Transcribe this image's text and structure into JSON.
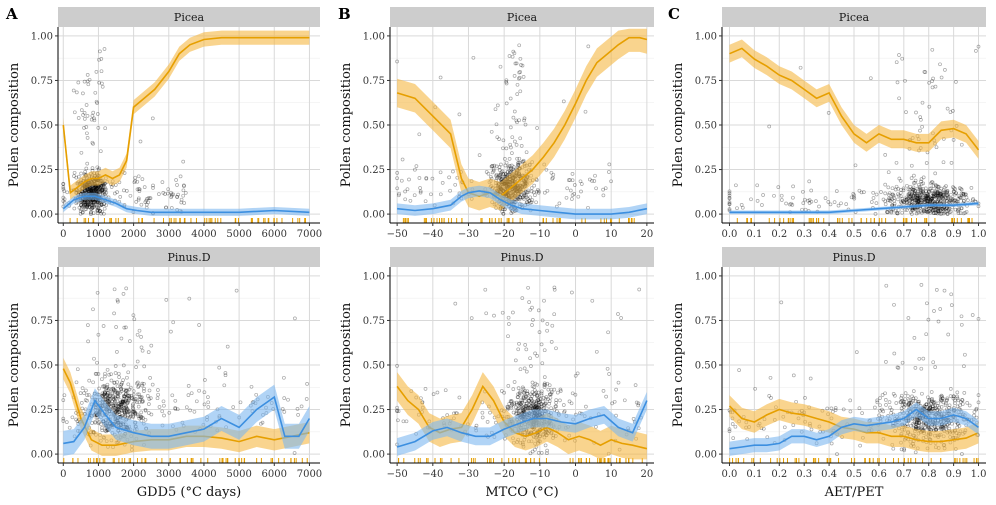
{
  "figure": {
    "y_label": "Pollen composition",
    "colors": {
      "orange_line": "#E69F00",
      "orange_band": "#F5B842",
      "blue_line": "#3C8FE0",
      "blue_band": "#7DB8F0",
      "points": "#000000",
      "strip_bg": "#CDCDCD",
      "grid": "#D9D9D9"
    }
  },
  "chart_data": [
    {
      "type": "scatter",
      "panel_letter": "A",
      "strip": "Picea",
      "xlabel": "",
      "xlim": [
        -150,
        7300
      ],
      "ylim": [
        -0.05,
        1.05
      ],
      "xticks": [
        0,
        1000,
        2000,
        3000,
        4000,
        5000,
        6000,
        7000
      ],
      "xtick_labels": [
        "0",
        "1000",
        "2000",
        "3000",
        "4000",
        "5000",
        "6000",
        "7000"
      ],
      "yticks": [
        0,
        0.25,
        0.5,
        0.75,
        1
      ],
      "ytick_labels": [
        "0.00",
        "0.25",
        "0.50",
        "0.75",
        "1.00"
      ],
      "points_summary": {
        "x_center": 800,
        "x_spread": 700,
        "y_mean": 0.12,
        "y_spread": 0.2,
        "x_tail_max": 3500
      },
      "series": [
        {
          "color": "orange",
          "x": [
            0,
            200,
            400,
            600,
            800,
            1000,
            1200,
            1400,
            1600,
            1800,
            2000,
            2300,
            2600,
            3000,
            3300,
            3600,
            4000,
            4500,
            5000,
            5500,
            6000,
            6500,
            7000
          ],
          "y": [
            0.5,
            0.12,
            0.15,
            0.18,
            0.2,
            0.2,
            0.22,
            0.2,
            0.22,
            0.3,
            0.6,
            0.65,
            0.7,
            0.8,
            0.9,
            0.95,
            0.98,
            0.99,
            0.99,
            0.99,
            0.99,
            0.99,
            0.99
          ],
          "band": 0.04
        },
        {
          "color": "blue",
          "x": [
            0,
            300,
            600,
            900,
            1200,
            1500,
            1800,
            2100,
            2500,
            3000,
            4000,
            5000,
            6000,
            7000
          ],
          "y": [
            0.03,
            0.08,
            0.1,
            0.1,
            0.08,
            0.06,
            0.03,
            0.02,
            0.01,
            0.01,
            0.01,
            0.01,
            0.02,
            0.01
          ],
          "band": 0.02
        }
      ]
    },
    {
      "type": "scatter",
      "panel_letter": "B",
      "strip": "Picea",
      "xlabel": "",
      "xlim": [
        -52,
        22
      ],
      "ylim": [
        -0.05,
        1.05
      ],
      "xticks": [
        -50,
        -40,
        -30,
        -20,
        -10,
        0,
        10,
        20
      ],
      "xtick_labels": [
        "−50",
        "−40",
        "−30",
        "−20",
        "−10",
        "0",
        "10",
        "20"
      ],
      "yticks": [
        0,
        0.25,
        0.5,
        0.75,
        1
      ],
      "ytick_labels": [
        "0.00",
        "0.25",
        "0.50",
        "0.75",
        "1.00"
      ],
      "points_summary": {
        "x_center": -18,
        "x_spread": 10,
        "y_mean": 0.15,
        "y_spread": 0.22,
        "x_tail_max": 10
      },
      "series": [
        {
          "color": "orange",
          "x": [
            -50,
            -45,
            -40,
            -35,
            -32,
            -30,
            -27,
            -24,
            -21,
            -18,
            -15,
            -12,
            -9,
            -6,
            -3,
            0,
            3,
            6,
            9,
            12,
            15,
            18,
            20
          ],
          "y": [
            0.68,
            0.65,
            0.55,
            0.45,
            0.2,
            0.12,
            0.1,
            0.12,
            0.1,
            0.15,
            0.2,
            0.25,
            0.32,
            0.4,
            0.5,
            0.62,
            0.75,
            0.85,
            0.9,
            0.95,
            0.99,
            0.99,
            0.98
          ],
          "band": 0.08
        },
        {
          "color": "blue",
          "x": [
            -50,
            -45,
            -40,
            -35,
            -32,
            -30,
            -27,
            -24,
            -21,
            -18,
            -15,
            -10,
            -5,
            0,
            5,
            10,
            15,
            20
          ],
          "y": [
            0.03,
            0.02,
            0.03,
            0.05,
            0.1,
            0.12,
            0.13,
            0.12,
            0.08,
            0.05,
            0.03,
            0.02,
            0.01,
            0.0,
            0.0,
            0.0,
            0.01,
            0.03
          ],
          "band": 0.03
        }
      ]
    },
    {
      "type": "scatter",
      "panel_letter": "C",
      "strip": "Picea",
      "xlabel": "",
      "xlim": [
        -0.03,
        1.03
      ],
      "ylim": [
        -0.05,
        1.05
      ],
      "xticks": [
        0,
        0.1,
        0.2,
        0.3,
        0.4,
        0.5,
        0.6,
        0.7,
        0.8,
        0.9,
        1
      ],
      "xtick_labels": [
        "0.0",
        "0.1",
        "0.2",
        "0.3",
        "0.4",
        "0.5",
        "0.6",
        "0.7",
        "0.8",
        "0.9",
        "1.0"
      ],
      "yticks": [
        0,
        0.25,
        0.5,
        0.75,
        1
      ],
      "ytick_labels": [
        "0.00",
        "0.25",
        "0.50",
        "0.75",
        "1.00"
      ],
      "points_summary": {
        "x_center": 0.8,
        "x_spread": 0.25,
        "y_mean": 0.08,
        "y_spread": 0.15,
        "x_tail_max": 1
      },
      "series": [
        {
          "color": "orange",
          "x": [
            0,
            0.05,
            0.1,
            0.15,
            0.2,
            0.25,
            0.3,
            0.35,
            0.4,
            0.45,
            0.5,
            0.55,
            0.6,
            0.65,
            0.7,
            0.75,
            0.8,
            0.85,
            0.9,
            0.95,
            1
          ],
          "y": [
            0.9,
            0.93,
            0.87,
            0.83,
            0.78,
            0.75,
            0.7,
            0.65,
            0.68,
            0.55,
            0.45,
            0.4,
            0.45,
            0.42,
            0.42,
            0.4,
            0.4,
            0.47,
            0.48,
            0.45,
            0.36
          ],
          "band": 0.05
        },
        {
          "color": "blue",
          "x": [
            0,
            0.1,
            0.2,
            0.3,
            0.4,
            0.5,
            0.6,
            0.7,
            0.8,
            0.9,
            1
          ],
          "y": [
            0.01,
            0.01,
            0.01,
            0.01,
            0.01,
            0.02,
            0.03,
            0.04,
            0.05,
            0.05,
            0.06
          ],
          "band": 0.01
        }
      ]
    },
    {
      "type": "scatter",
      "panel_letter": "",
      "strip": "Pinus.D",
      "xlabel": "GDD5 (°C days)",
      "xlim": [
        -150,
        7300
      ],
      "ylim": [
        -0.05,
        1.05
      ],
      "xticks": [
        0,
        1000,
        2000,
        3000,
        4000,
        5000,
        6000,
        7000
      ],
      "xtick_labels": [
        "0",
        "1000",
        "2000",
        "3000",
        "4000",
        "5000",
        "6000",
        "7000"
      ],
      "yticks": [
        0,
        0.25,
        0.5,
        0.75,
        1
      ],
      "ytick_labels": [
        "0.00",
        "0.25",
        "0.50",
        "0.75",
        "1.00"
      ],
      "points_summary": {
        "x_center": 1500,
        "x_spread": 1500,
        "y_mean": 0.25,
        "y_spread": 0.3,
        "x_tail_max": 7000
      },
      "series": [
        {
          "color": "orange",
          "x": [
            0,
            200,
            500,
            800,
            1100,
            1500,
            2000,
            2500,
            3000,
            3500,
            4000,
            4500,
            5000,
            5500,
            6000,
            6500,
            7000
          ],
          "y": [
            0.48,
            0.4,
            0.2,
            0.08,
            0.05,
            0.05,
            0.07,
            0.08,
            0.08,
            0.1,
            0.1,
            0.09,
            0.07,
            0.1,
            0.08,
            0.1,
            0.12
          ],
          "band": 0.06
        },
        {
          "color": "blue",
          "x": [
            0,
            300,
            600,
            900,
            1200,
            1500,
            2000,
            2500,
            3000,
            3500,
            4000,
            4500,
            5000,
            5500,
            6000,
            6300,
            6700,
            7000
          ],
          "y": [
            0.06,
            0.07,
            0.15,
            0.3,
            0.22,
            0.15,
            0.12,
            0.1,
            0.1,
            0.12,
            0.14,
            0.2,
            0.15,
            0.25,
            0.32,
            0.1,
            0.1,
            0.2
          ],
          "band": 0.07
        }
      ]
    },
    {
      "type": "scatter",
      "panel_letter": "",
      "strip": "Pinus.D",
      "xlabel": "MTCO (°C)",
      "xlim": [
        -52,
        22
      ],
      "ylim": [
        -0.05,
        1.05
      ],
      "xticks": [
        -50,
        -40,
        -30,
        -20,
        -10,
        0,
        10,
        20
      ],
      "xtick_labels": [
        "−50",
        "−40",
        "−30",
        "−20",
        "−10",
        "0",
        "10",
        "20"
      ],
      "yticks": [
        0,
        0.25,
        0.5,
        0.75,
        1
      ],
      "ytick_labels": [
        "0.00",
        "0.25",
        "0.50",
        "0.75",
        "1.00"
      ],
      "points_summary": {
        "x_center": -12,
        "x_spread": 12,
        "y_mean": 0.22,
        "y_spread": 0.28,
        "x_tail_max": 20
      },
      "series": [
        {
          "color": "orange",
          "x": [
            -50,
            -47,
            -44,
            -41,
            -38,
            -35,
            -32,
            -29,
            -26,
            -23,
            -20,
            -17,
            -14,
            -11,
            -8,
            -5,
            -2,
            1,
            4,
            7,
            10,
            13,
            16,
            20
          ],
          "y": [
            0.38,
            0.3,
            0.25,
            0.15,
            0.12,
            0.14,
            0.15,
            0.25,
            0.38,
            0.3,
            0.18,
            0.12,
            0.1,
            0.12,
            0.15,
            0.12,
            0.08,
            0.1,
            0.08,
            0.05,
            0.08,
            0.06,
            0.05,
            0.03
          ],
          "band": 0.08
        },
        {
          "color": "blue",
          "x": [
            -50,
            -45,
            -40,
            -36,
            -32,
            -28,
            -24,
            -20,
            -16,
            -12,
            -8,
            -4,
            0,
            4,
            8,
            12,
            16,
            20
          ],
          "y": [
            0.04,
            0.07,
            0.13,
            0.15,
            0.12,
            0.1,
            0.1,
            0.14,
            0.17,
            0.2,
            0.2,
            0.18,
            0.17,
            0.2,
            0.22,
            0.15,
            0.12,
            0.3
          ],
          "band": 0.05
        }
      ]
    },
    {
      "type": "scatter",
      "panel_letter": "",
      "strip": "Pinus.D",
      "xlabel": "AET/PET",
      "xlim": [
        -0.03,
        1.03
      ],
      "ylim": [
        -0.05,
        1.05
      ],
      "xticks": [
        0,
        0.1,
        0.2,
        0.3,
        0.4,
        0.5,
        0.6,
        0.7,
        0.8,
        0.9,
        1
      ],
      "xtick_labels": [
        "0.0",
        "0.1",
        "0.2",
        "0.3",
        "0.4",
        "0.5",
        "0.6",
        "0.7",
        "0.8",
        "0.9",
        "1.0"
      ],
      "yticks": [
        0,
        0.25,
        0.5,
        0.75,
        1
      ],
      "ytick_labels": [
        "0.00",
        "0.25",
        "0.50",
        "0.75",
        "1.00"
      ],
      "points_summary": {
        "x_center": 0.8,
        "x_spread": 0.3,
        "y_mean": 0.2,
        "y_spread": 0.25,
        "x_tail_max": 1
      },
      "series": [
        {
          "color": "orange",
          "x": [
            0,
            0.05,
            0.1,
            0.15,
            0.2,
            0.25,
            0.3,
            0.35,
            0.4,
            0.45,
            0.5,
            0.55,
            0.6,
            0.65,
            0.7,
            0.75,
            0.8,
            0.85,
            0.9,
            0.95,
            1
          ],
          "y": [
            0.27,
            0.2,
            0.18,
            0.22,
            0.25,
            0.23,
            0.22,
            0.2,
            0.18,
            0.15,
            0.14,
            0.12,
            0.12,
            0.1,
            0.1,
            0.08,
            0.07,
            0.07,
            0.08,
            0.09,
            0.12
          ],
          "band": 0.06
        },
        {
          "color": "blue",
          "x": [
            0,
            0.05,
            0.1,
            0.15,
            0.2,
            0.25,
            0.3,
            0.35,
            0.4,
            0.45,
            0.5,
            0.55,
            0.6,
            0.65,
            0.7,
            0.75,
            0.8,
            0.85,
            0.9,
            0.95,
            1
          ],
          "y": [
            0.03,
            0.04,
            0.05,
            0.05,
            0.06,
            0.1,
            0.1,
            0.08,
            0.1,
            0.15,
            0.17,
            0.16,
            0.17,
            0.18,
            0.2,
            0.25,
            0.2,
            0.2,
            0.22,
            0.2,
            0.15
          ],
          "band": 0.04
        }
      ]
    }
  ]
}
